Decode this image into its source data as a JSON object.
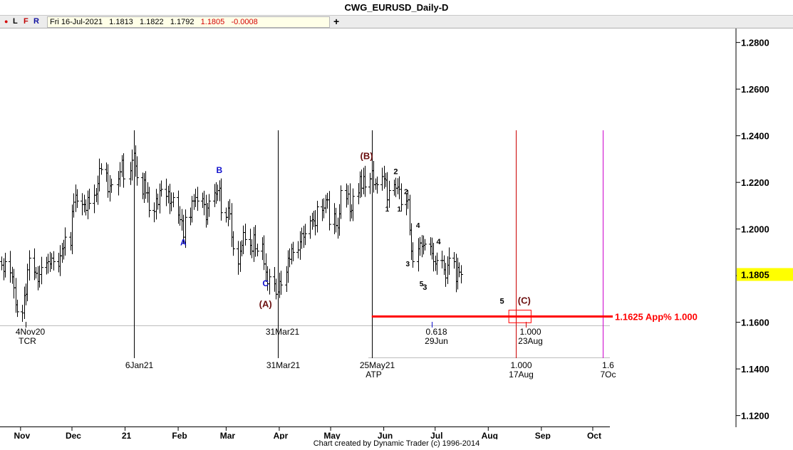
{
  "window": {
    "title": "CWG_EURUSD_Daily-D"
  },
  "toolbar": {
    "buttons": [
      "L",
      "F",
      "R"
    ],
    "quote": {
      "date": "Fri 16-Jul-2021",
      "open": "1.1813",
      "high": "1.1822",
      "low": "1.1792",
      "close": "1.1805",
      "change": "-0.0008"
    },
    "add": "+"
  },
  "footer": "Chart created by Dynamic Trader  (c) 1996-2014",
  "colors": {
    "bar": "#000000",
    "hline": "#ff0000",
    "red": "#cc0000",
    "blue": "#1010cc",
    "magenta": "#cc00cc",
    "brown": "#6b0f0f",
    "last_price_bg": "#ffff00"
  },
  "chart_data": {
    "type": "ohlc",
    "title": "CWG_EURUSD_Daily-D",
    "ylim": [
      1.115,
      1.286
    ],
    "y_ticks": [
      "1.1200",
      "1.1400",
      "1.1600",
      "1.1800",
      "1.2000",
      "1.2200",
      "1.2400",
      "1.2600",
      "1.2800"
    ],
    "last_price": "1.1805",
    "x_ticks": [
      "Nov",
      "Dec",
      "21",
      "Feb",
      "Mar",
      "Apr",
      "May",
      "Jun",
      "Jul",
      "Aug",
      "Sep",
      "Oct"
    ],
    "x_tick_dates": [
      "2020-11-01",
      "2020-12-01",
      "2021-01-01",
      "2021-02-01",
      "2021-03-01",
      "2021-04-01",
      "2021-05-01",
      "2021-06-01",
      "2021-07-01",
      "2021-08-01",
      "2021-09-01",
      "2021-10-01"
    ],
    "x_range": [
      "2020-10-20",
      "2021-10-11"
    ],
    "closes": [
      [
        "2020-10-21",
        1.1845
      ],
      [
        "2020-10-22",
        1.1818
      ],
      [
        "2020-10-23",
        1.186
      ],
      [
        "2020-10-26",
        1.1812
      ],
      [
        "2020-10-27",
        1.1795
      ],
      [
        "2020-10-28",
        1.1748
      ],
      [
        "2020-10-29",
        1.1675
      ],
      [
        "2020-10-30",
        1.1645
      ],
      [
        "2020-11-02",
        1.164
      ],
      [
        "2020-11-03",
        1.1715
      ],
      [
        "2020-11-04",
        1.172
      ],
      [
        "2020-11-05",
        1.1825
      ],
      [
        "2020-11-06",
        1.1875
      ],
      [
        "2020-11-09",
        1.1815
      ],
      [
        "2020-11-10",
        1.181
      ],
      [
        "2020-11-11",
        1.1775
      ],
      [
        "2020-11-12",
        1.1805
      ],
      [
        "2020-11-13",
        1.1835
      ],
      [
        "2020-11-16",
        1.1855
      ],
      [
        "2020-11-17",
        1.186
      ],
      [
        "2020-11-18",
        1.185
      ],
      [
        "2020-11-19",
        1.1875
      ],
      [
        "2020-11-20",
        1.186
      ],
      [
        "2020-11-23",
        1.184
      ],
      [
        "2020-11-24",
        1.1885
      ],
      [
        "2020-11-25",
        1.1915
      ],
      [
        "2020-11-26",
        1.192
      ],
      [
        "2020-11-27",
        1.1965
      ],
      [
        "2020-11-30",
        1.193
      ],
      [
        "2020-12-01",
        1.2075
      ],
      [
        "2020-12-02",
        1.2115
      ],
      [
        "2020-12-03",
        1.2145
      ],
      [
        "2020-12-04",
        1.212
      ],
      [
        "2020-12-07",
        1.2105
      ],
      [
        "2020-12-08",
        1.2105
      ],
      [
        "2020-12-09",
        1.208
      ],
      [
        "2020-12-10",
        1.2135
      ],
      [
        "2020-12-11",
        1.211
      ],
      [
        "2020-12-14",
        1.2145
      ],
      [
        "2020-12-15",
        1.215
      ],
      [
        "2020-12-16",
        1.2195
      ],
      [
        "2020-12-17",
        1.226
      ],
      [
        "2020-12-18",
        1.2255
      ],
      [
        "2020-12-21",
        1.224
      ],
      [
        "2020-12-22",
        1.216
      ],
      [
        "2020-12-23",
        1.2185
      ],
      [
        "2020-12-24",
        1.219
      ],
      [
        "2020-12-28",
        1.2215
      ],
      [
        "2020-12-29",
        1.2245
      ],
      [
        "2020-12-30",
        1.2295
      ],
      [
        "2020-12-31",
        1.2215
      ],
      [
        "2021-01-04",
        1.225
      ],
      [
        "2021-01-05",
        1.2295
      ],
      [
        "2021-01-06",
        1.2325
      ],
      [
        "2021-01-07",
        1.227
      ],
      [
        "2021-01-08",
        1.222
      ],
      [
        "2021-01-11",
        1.215
      ],
      [
        "2021-01-12",
        1.221
      ],
      [
        "2021-01-13",
        1.2155
      ],
      [
        "2021-01-14",
        1.2155
      ],
      [
        "2021-01-15",
        1.208
      ],
      [
        "2021-01-18",
        1.2075
      ],
      [
        "2021-01-19",
        1.213
      ],
      [
        "2021-01-20",
        1.2105
      ],
      [
        "2021-01-21",
        1.2165
      ],
      [
        "2021-01-22",
        1.217
      ],
      [
        "2021-01-25",
        1.214
      ],
      [
        "2021-01-26",
        1.216
      ],
      [
        "2021-01-27",
        1.211
      ],
      [
        "2021-01-28",
        1.2115
      ],
      [
        "2021-01-29",
        1.2135
      ],
      [
        "2021-02-01",
        1.206
      ],
      [
        "2021-02-02",
        1.204
      ],
      [
        "2021-02-03",
        1.2035
      ],
      [
        "2021-02-04",
        1.1965
      ],
      [
        "2021-02-05",
        1.205
      ],
      [
        "2021-02-08",
        1.205
      ],
      [
        "2021-02-09",
        1.212
      ],
      [
        "2021-02-10",
        1.212
      ],
      [
        "2021-02-11",
        1.2135
      ],
      [
        "2021-02-12",
        1.212
      ],
      [
        "2021-02-15",
        1.213
      ],
      [
        "2021-02-16",
        1.2105
      ],
      [
        "2021-02-17",
        1.204
      ],
      [
        "2021-02-18",
        1.209
      ],
      [
        "2021-02-19",
        1.212
      ],
      [
        "2021-02-22",
        1.2155
      ],
      [
        "2021-02-23",
        1.215
      ],
      [
        "2021-02-24",
        1.2165
      ],
      [
        "2021-02-25",
        1.2175
      ],
      [
        "2021-02-26",
        1.207
      ],
      [
        "2021-03-01",
        1.205
      ],
      [
        "2021-03-02",
        1.209
      ],
      [
        "2021-03-03",
        1.2065
      ],
      [
        "2021-03-04",
        1.1965
      ],
      [
        "2021-03-05",
        1.1915
      ],
      [
        "2021-03-08",
        1.185
      ],
      [
        "2021-03-09",
        1.1905
      ],
      [
        "2021-03-10",
        1.193
      ],
      [
        "2021-03-11",
        1.1985
      ],
      [
        "2021-03-12",
        1.1955
      ],
      [
        "2021-03-15",
        1.193
      ],
      [
        "2021-03-16",
        1.1905
      ],
      [
        "2021-03-17",
        1.1975
      ],
      [
        "2021-03-18",
        1.1915
      ],
      [
        "2021-03-19",
        1.1905
      ],
      [
        "2021-03-22",
        1.1935
      ],
      [
        "2021-03-23",
        1.185
      ],
      [
        "2021-03-24",
        1.1815
      ],
      [
        "2021-03-25",
        1.1765
      ],
      [
        "2021-03-26",
        1.1795
      ],
      [
        "2021-03-29",
        1.1765
      ],
      [
        "2021-03-30",
        1.172
      ],
      [
        "2021-03-31",
        1.173
      ],
      [
        "2021-04-01",
        1.1775
      ],
      [
        "2021-04-02",
        1.176
      ],
      [
        "2021-04-05",
        1.1815
      ],
      [
        "2021-04-06",
        1.1875
      ],
      [
        "2021-04-07",
        1.187
      ],
      [
        "2021-04-08",
        1.1915
      ],
      [
        "2021-04-09",
        1.19
      ],
      [
        "2021-04-12",
        1.191
      ],
      [
        "2021-04-13",
        1.1945
      ],
      [
        "2021-04-14",
        1.198
      ],
      [
        "2021-04-15",
        1.1965
      ],
      [
        "2021-04-16",
        1.198
      ],
      [
        "2021-04-19",
        1.2035
      ],
      [
        "2021-04-20",
        1.204
      ],
      [
        "2021-04-21",
        1.2035
      ],
      [
        "2021-04-22",
        1.2015
      ],
      [
        "2021-04-23",
        1.2095
      ],
      [
        "2021-04-26",
        1.208
      ],
      [
        "2021-04-27",
        1.209
      ],
      [
        "2021-04-28",
        1.2125
      ],
      [
        "2021-04-29",
        1.2125
      ],
      [
        "2021-04-30",
        1.202
      ],
      [
        "2021-05-03",
        1.2065
      ],
      [
        "2021-05-04",
        1.2015
      ],
      [
        "2021-05-05",
        1.2005
      ],
      [
        "2021-05-06",
        1.2065
      ],
      [
        "2021-05-07",
        1.2165
      ],
      [
        "2021-05-10",
        1.213
      ],
      [
        "2021-05-11",
        1.215
      ],
      [
        "2021-05-12",
        1.2075
      ],
      [
        "2021-05-13",
        1.208
      ],
      [
        "2021-05-14",
        1.214
      ],
      [
        "2021-05-17",
        1.2155
      ],
      [
        "2021-05-18",
        1.2225
      ],
      [
        "2021-05-19",
        1.2175
      ],
      [
        "2021-05-20",
        1.2225
      ],
      [
        "2021-05-21",
        1.218
      ],
      [
        "2021-05-24",
        1.2215
      ],
      [
        "2021-05-25",
        1.225
      ],
      [
        "2021-05-26",
        1.219
      ],
      [
        "2021-05-27",
        1.2195
      ],
      [
        "2021-05-28",
        1.219
      ],
      [
        "2021-05-31",
        1.2225
      ],
      [
        "2021-06-01",
        1.2215
      ],
      [
        "2021-06-02",
        1.221
      ],
      [
        "2021-06-03",
        1.2125
      ],
      [
        "2021-06-04",
        1.2165
      ],
      [
        "2021-06-07",
        1.219
      ],
      [
        "2021-06-08",
        1.2175
      ],
      [
        "2021-06-09",
        1.218
      ],
      [
        "2021-06-10",
        1.217
      ],
      [
        "2021-06-11",
        1.2105
      ],
      [
        "2021-06-14",
        1.212
      ],
      [
        "2021-06-15",
        1.2125
      ],
      [
        "2021-06-16",
        1.1995
      ],
      [
        "2021-06-17",
        1.1905
      ],
      [
        "2021-06-18",
        1.186
      ],
      [
        "2021-06-21",
        1.1915
      ],
      [
        "2021-06-22",
        1.194
      ],
      [
        "2021-06-23",
        1.1925
      ],
      [
        "2021-06-24",
        1.193
      ],
      [
        "2021-06-25",
        1.1935
      ],
      [
        "2021-06-28",
        1.1925
      ],
      [
        "2021-06-29",
        1.1895
      ],
      [
        "2021-06-30",
        1.186
      ],
      [
        "2021-07-01",
        1.185
      ],
      [
        "2021-07-02",
        1.1865
      ],
      [
        "2021-07-05",
        1.1865
      ],
      [
        "2021-07-06",
        1.1825
      ],
      [
        "2021-07-07",
        1.179
      ],
      [
        "2021-07-08",
        1.1845
      ],
      [
        "2021-07-09",
        1.1875
      ],
      [
        "2021-07-12",
        1.186
      ],
      [
        "2021-07-13",
        1.1775
      ],
      [
        "2021-07-14",
        1.1835
      ],
      [
        "2021-07-15",
        1.1815
      ],
      [
        "2021-07-16",
        1.1805
      ]
    ],
    "vertical_lines": [
      {
        "date": "2021-01-06",
        "label": "6Jan21",
        "color": "#000000"
      },
      {
        "date": "2021-03-31",
        "label": "31Mar21",
        "color": "#000000"
      },
      {
        "date": "2021-05-25",
        "label": "25May21",
        "sub": "ATP",
        "color": "#000000"
      },
      {
        "date": "2021-08-17",
        "value": "1.000",
        "label": "17Aug",
        "color": "#cc0000"
      },
      {
        "date": "2021-10-07",
        "value": "1.6",
        "label": "7Oc",
        "color": "#cc00cc"
      }
    ],
    "time_projections": [
      {
        "date": "2020-11-04",
        "label": "4Nov20",
        "sub": "TCR",
        "color": "#000000"
      },
      {
        "date": "2021-03-31",
        "label": "31Mar21",
        "color": "#000000"
      },
      {
        "date": "2021-06-29",
        "value": "0.618",
        "label": "29Jun",
        "color": "#1010cc"
      },
      {
        "date": "2021-08-23",
        "value": "1.000",
        "label": "23Aug",
        "color": "#cc0000"
      }
    ],
    "horizontal_line": {
      "price": 1.1625,
      "from": "2021-05-25",
      "label": "1.1625 App% 1.000"
    },
    "target_box": {
      "from": "2021-08-13",
      "to": "2021-08-26",
      "low": 1.1598,
      "high": 1.1652
    },
    "wave_labels": [
      {
        "text": "A",
        "date": "2021-02-04",
        "price": 1.193,
        "color": "#1010cc",
        "size": 12
      },
      {
        "text": "B",
        "date": "2021-02-25",
        "price": 1.224,
        "color": "#1010cc",
        "size": 12
      },
      {
        "text": "C",
        "date": "2021-03-24",
        "price": 1.1755,
        "color": "#1010cc",
        "size": 12
      },
      {
        "text": "(A)",
        "date": "2021-03-24",
        "price": 1.1665,
        "color": "#6b0f0f",
        "size": 13
      },
      {
        "text": "(B)",
        "date": "2021-05-22",
        "price": 1.23,
        "color": "#6b0f0f",
        "size": 13
      },
      {
        "text": "(C)",
        "date": "2021-08-22",
        "price": 1.168,
        "color": "#6b0f0f",
        "size": 13
      },
      {
        "text": "5",
        "date": "2021-08-09",
        "price": 1.168,
        "color": "#000000",
        "size": 11
      },
      {
        "text": "1",
        "date": "2021-06-03",
        "price": 1.2075,
        "color": "#000000",
        "size": 10
      },
      {
        "text": "2",
        "date": "2021-06-08",
        "price": 1.2235,
        "color": "#000000",
        "size": 11
      },
      {
        "text": "1",
        "date": "2021-06-10",
        "price": 1.2075,
        "color": "#000000",
        "size": 10
      },
      {
        "text": "2",
        "date": "2021-06-14",
        "price": 1.215,
        "color": "#000000",
        "size": 10
      },
      {
        "text": "3",
        "date": "2021-06-15",
        "price": 1.184,
        "color": "#000000",
        "size": 10
      },
      {
        "text": "4",
        "date": "2021-06-21",
        "price": 1.2005,
        "color": "#000000",
        "size": 10
      },
      {
        "text": "5",
        "date": "2021-06-23",
        "price": 1.1755,
        "color": "#000000",
        "size": 10
      },
      {
        "text": "3",
        "date": "2021-06-25",
        "price": 1.174,
        "color": "#000000",
        "size": 11
      },
      {
        "text": "4",
        "date": "2021-07-03",
        "price": 1.1935,
        "color": "#000000",
        "size": 11
      }
    ]
  }
}
